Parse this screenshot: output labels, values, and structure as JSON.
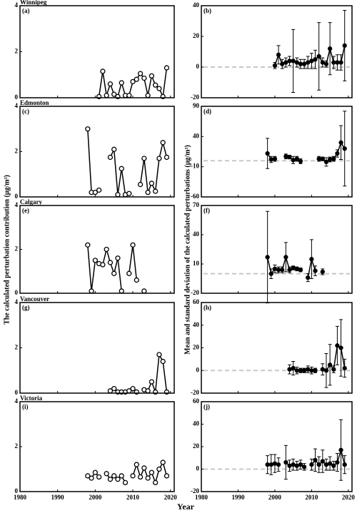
{
  "x_label": "Year",
  "y_label_left": "The calculated perturbation contribution (μg/m³)",
  "y_label_right": "Mean and standard deviation of the calculated perturbations (μg/m³)",
  "chart_data": [
    {
      "type": "line",
      "title": "Winnipeg",
      "panel_label": "(a)",
      "x": [
        2001,
        2002,
        2003,
        2004,
        2005,
        2006,
        2007,
        2008,
        2009,
        2010,
        2011,
        2012,
        2013,
        2014,
        2015,
        2016,
        2017,
        2018,
        2019
      ],
      "series": [
        {
          "color": "#000000",
          "marker": "open",
          "values": [
            0.05,
            1.15,
            0.1,
            0.6,
            0.15,
            0.05,
            0.65,
            0.1,
            0.1,
            0.7,
            0.8,
            1.05,
            0.85,
            0.1,
            0.95,
            0.55,
            0.4,
            0.05,
            1.3
          ]
        }
      ],
      "xlim": [
        1980,
        2021
      ],
      "xticks": [
        1980,
        1990,
        2000,
        2010,
        2020
      ],
      "ylim": [
        0,
        4
      ],
      "yticks": [
        0,
        2,
        4
      ]
    },
    {
      "type": "errorbar",
      "panel_label": "(b)",
      "x": [
        2000,
        2001,
        2002,
        2003,
        2004,
        2005,
        2006,
        2007,
        2008,
        2009,
        2010,
        2011,
        2012,
        2013,
        2014,
        2015,
        2016,
        2017,
        2018,
        2019
      ],
      "series": [
        {
          "color": "#000000",
          "marker": "filled",
          "values": [
            1,
            8,
            2,
            3,
            4,
            4,
            3,
            2,
            2,
            3,
            4,
            5,
            7,
            3,
            2,
            12,
            3,
            3,
            3,
            14
          ],
          "errors": [
            2,
            6,
            3,
            3,
            3,
            20.5,
            3,
            3,
            3,
            4,
            5,
            6,
            22,
            3,
            2,
            17,
            4,
            5,
            5,
            23
          ]
        }
      ],
      "xlim": [
        1980,
        2021
      ],
      "xticks": [
        1980,
        1990,
        2000,
        2010,
        2020
      ],
      "ylim": [
        -20,
        40
      ],
      "yticks": [
        -20,
        0,
        20,
        40
      ],
      "hline": 0,
      "hline_color": "#c8c8c8"
    },
    {
      "type": "line",
      "title": "Edmonton",
      "panel_label": "(c)",
      "x": [
        1998,
        1999,
        2000,
        2001,
        2002,
        2003,
        2004,
        2005,
        2006,
        2007,
        2008,
        2009,
        2010,
        2011,
        2012,
        2013,
        2014,
        2015,
        2016,
        2017,
        2018,
        2019
      ],
      "series": [
        {
          "color": "#000000",
          "marker": "open",
          "values": [
            3.0,
            0.2,
            0.2,
            0.3,
            null,
            null,
            1.75,
            2.1,
            0.1,
            1.25,
            0.1,
            0.15,
            null,
            null,
            0.55,
            1.7,
            0.2,
            0.6,
            0.25,
            1.7,
            2.4,
            1.75
          ]
        }
      ],
      "xlim": [
        1980,
        2021
      ],
      "xticks": [
        1980,
        1990,
        2000,
        2010,
        2020
      ],
      "ylim": [
        0,
        4
      ],
      "yticks": [
        0,
        2,
        4
      ]
    },
    {
      "type": "errorbar",
      "panel_label": "(d)",
      "x": [
        1998,
        1999,
        2000,
        2001,
        2002,
        2003,
        2004,
        2005,
        2006,
        2007,
        2008,
        2009,
        2010,
        2011,
        2012,
        2013,
        2014,
        2015,
        2016,
        2017,
        2018,
        2019
      ],
      "series": [
        {
          "color": "#000000",
          "marker": "filled",
          "values": [
            12,
            2,
            3,
            null,
            null,
            7,
            6,
            1,
            3,
            -1,
            null,
            null,
            null,
            null,
            3,
            3,
            -2,
            2,
            3,
            12,
            30,
            20
          ],
          "errors": [
            25,
            5,
            4,
            null,
            null,
            4,
            3,
            6,
            4,
            4,
            null,
            null,
            null,
            null,
            4,
            3,
            7,
            4,
            4,
            6,
            28,
            62
          ]
        }
      ],
      "xlim": [
        1980,
        2021
      ],
      "xticks": [
        1980,
        1990,
        2000,
        2010,
        2020
      ],
      "ylim": [
        -60,
        90
      ],
      "yticks": [
        -60,
        -10,
        40,
        90
      ],
      "hline": 0,
      "hline_color": "#c8c8c8"
    },
    {
      "type": "line",
      "title": "Calgary",
      "panel_label": "(e)",
      "x": [
        1998,
        1999,
        2000,
        2001,
        2002,
        2003,
        2004,
        2005,
        2006,
        2007,
        2008,
        2009,
        2010,
        2011,
        2012,
        2013
      ],
      "series": [
        {
          "color": "#000000",
          "marker": "open",
          "values": [
            2.2,
            0.1,
            1.5,
            1.35,
            1.3,
            2.0,
            1.4,
            0.9,
            1.6,
            0.1,
            null,
            0.9,
            2.2,
            0.6,
            null,
            0.1
          ]
        }
      ],
      "xlim": [
        1980,
        2021
      ],
      "xticks": [
        1980,
        1990,
        2000,
        2010,
        2020
      ],
      "ylim": [
        0,
        4
      ],
      "yticks": [
        0,
        2,
        4
      ]
    },
    {
      "type": "errorbar",
      "panel_label": "(f)",
      "x": [
        1998,
        1999,
        2000,
        2001,
        2002,
        2003,
        2004,
        2005,
        2006,
        2007,
        2008,
        2009,
        2010,
        2011,
        2012,
        2013
      ],
      "series": [
        {
          "color": "#000000",
          "marker": "filled",
          "values": [
            17,
            0,
            5,
            4,
            4,
            17,
            4,
            6,
            5,
            4,
            null,
            -4,
            15,
            3,
            null,
            2
          ],
          "errors": [
            47,
            5,
            4,
            3,
            3,
            15,
            3,
            2,
            2,
            2,
            null,
            4,
            20,
            5,
            null,
            3
          ]
        }
      ],
      "xlim": [
        1980,
        2021
      ],
      "xticks": [
        1980,
        1990,
        2000,
        2010,
        2020
      ],
      "ylim": [
        -20,
        70
      ],
      "yticks": [
        -20,
        10,
        40,
        70
      ],
      "hline": 0,
      "hline_color": "#c8c8c8"
    },
    {
      "type": "line",
      "title": "Vancouver",
      "panel_label": "(g)",
      "x": [
        2004,
        2005,
        2006,
        2007,
        2008,
        2009,
        2010,
        2011,
        2012,
        2013,
        2014,
        2015,
        2016,
        2017,
        2018,
        2019
      ],
      "series": [
        {
          "color": "#000000",
          "marker": "open",
          "values": [
            0.1,
            0.2,
            0.05,
            0.05,
            0.05,
            0.1,
            0.2,
            0.05,
            null,
            0.15,
            0.1,
            0.5,
            0.05,
            1.7,
            1.4,
            0.05
          ]
        }
      ],
      "xlim": [
        1980,
        2021
      ],
      "xticks": [
        1980,
        1990,
        2000,
        2010,
        2020
      ],
      "ylim": [
        0,
        4
      ],
      "yticks": [
        0,
        2,
        4
      ]
    },
    {
      "type": "errorbar",
      "panel_label": "(h)",
      "x": [
        2004,
        2005,
        2006,
        2007,
        2008,
        2009,
        2010,
        2011,
        2012,
        2013,
        2014,
        2015,
        2016,
        2017,
        2018,
        2019
      ],
      "series": [
        {
          "color": "#000000",
          "marker": "filled",
          "values": [
            1,
            2,
            0,
            0,
            0,
            1,
            0,
            0,
            null,
            1,
            0,
            5,
            1,
            22,
            20,
            2
          ],
          "errors": [
            4,
            6,
            3,
            2,
            2,
            3,
            3,
            2,
            null,
            5,
            15,
            18,
            3,
            17,
            25,
            8
          ]
        }
      ],
      "xlim": [
        1980,
        2021
      ],
      "xticks": [
        1980,
        1990,
        2000,
        2010,
        2020
      ],
      "ylim": [
        -20,
        60
      ],
      "yticks": [
        -20,
        0,
        20,
        40,
        60
      ],
      "hline": 0,
      "hline_color": "#c8c8c8"
    },
    {
      "type": "line",
      "title": "Victoria",
      "panel_label": "(i)",
      "x": [
        1998,
        1999,
        2000,
        2001,
        2002,
        2003,
        2004,
        2005,
        2006,
        2007,
        2008,
        2009,
        2010,
        2011,
        2012,
        2013,
        2014,
        2015,
        2016,
        2017,
        2018,
        2019
      ],
      "series": [
        {
          "color": "#000000",
          "marker": "open",
          "values": [
            0.7,
            0.6,
            0.85,
            0.65,
            null,
            0.8,
            0.55,
            0.7,
            0.55,
            0.7,
            0.4,
            null,
            0.7,
            1.2,
            0.65,
            1.05,
            0.6,
            0.85,
            0.4,
            1.0,
            1.3,
            0.7
          ]
        }
      ],
      "xlim": [
        1980,
        2021
      ],
      "xticks": [
        1980,
        1990,
        2000,
        2010,
        2020
      ],
      "ylim": [
        0,
        4
      ],
      "yticks": [
        0,
        2,
        4
      ]
    },
    {
      "type": "errorbar",
      "panel_label": "(j)",
      "x": [
        1998,
        1999,
        2000,
        2001,
        2002,
        2003,
        2004,
        2005,
        2006,
        2007,
        2008,
        2009,
        2010,
        2011,
        2012,
        2013,
        2014,
        2015,
        2016,
        2017,
        2018,
        2019
      ],
      "series": [
        {
          "color": "#000000",
          "marker": "filled",
          "values": [
            4,
            4,
            5,
            4,
            null,
            6,
            3,
            4,
            3,
            4,
            2,
            null,
            4,
            8,
            4,
            7,
            4,
            5,
            3,
            6,
            17,
            4
          ],
          "errors": [
            8,
            9,
            8,
            6,
            null,
            15,
            5,
            5,
            4,
            4,
            3,
            null,
            5,
            10,
            7,
            10,
            5,
            6,
            4,
            8,
            27,
            8
          ]
        }
      ],
      "xlim": [
        1980,
        2021
      ],
      "xticks": [
        1980,
        1990,
        2000,
        2010,
        2020
      ],
      "ylim": [
        -20,
        60
      ],
      "yticks": [
        -20,
        0,
        20,
        40,
        60
      ],
      "hline": 0,
      "hline_color": "#c8c8c8"
    }
  ]
}
